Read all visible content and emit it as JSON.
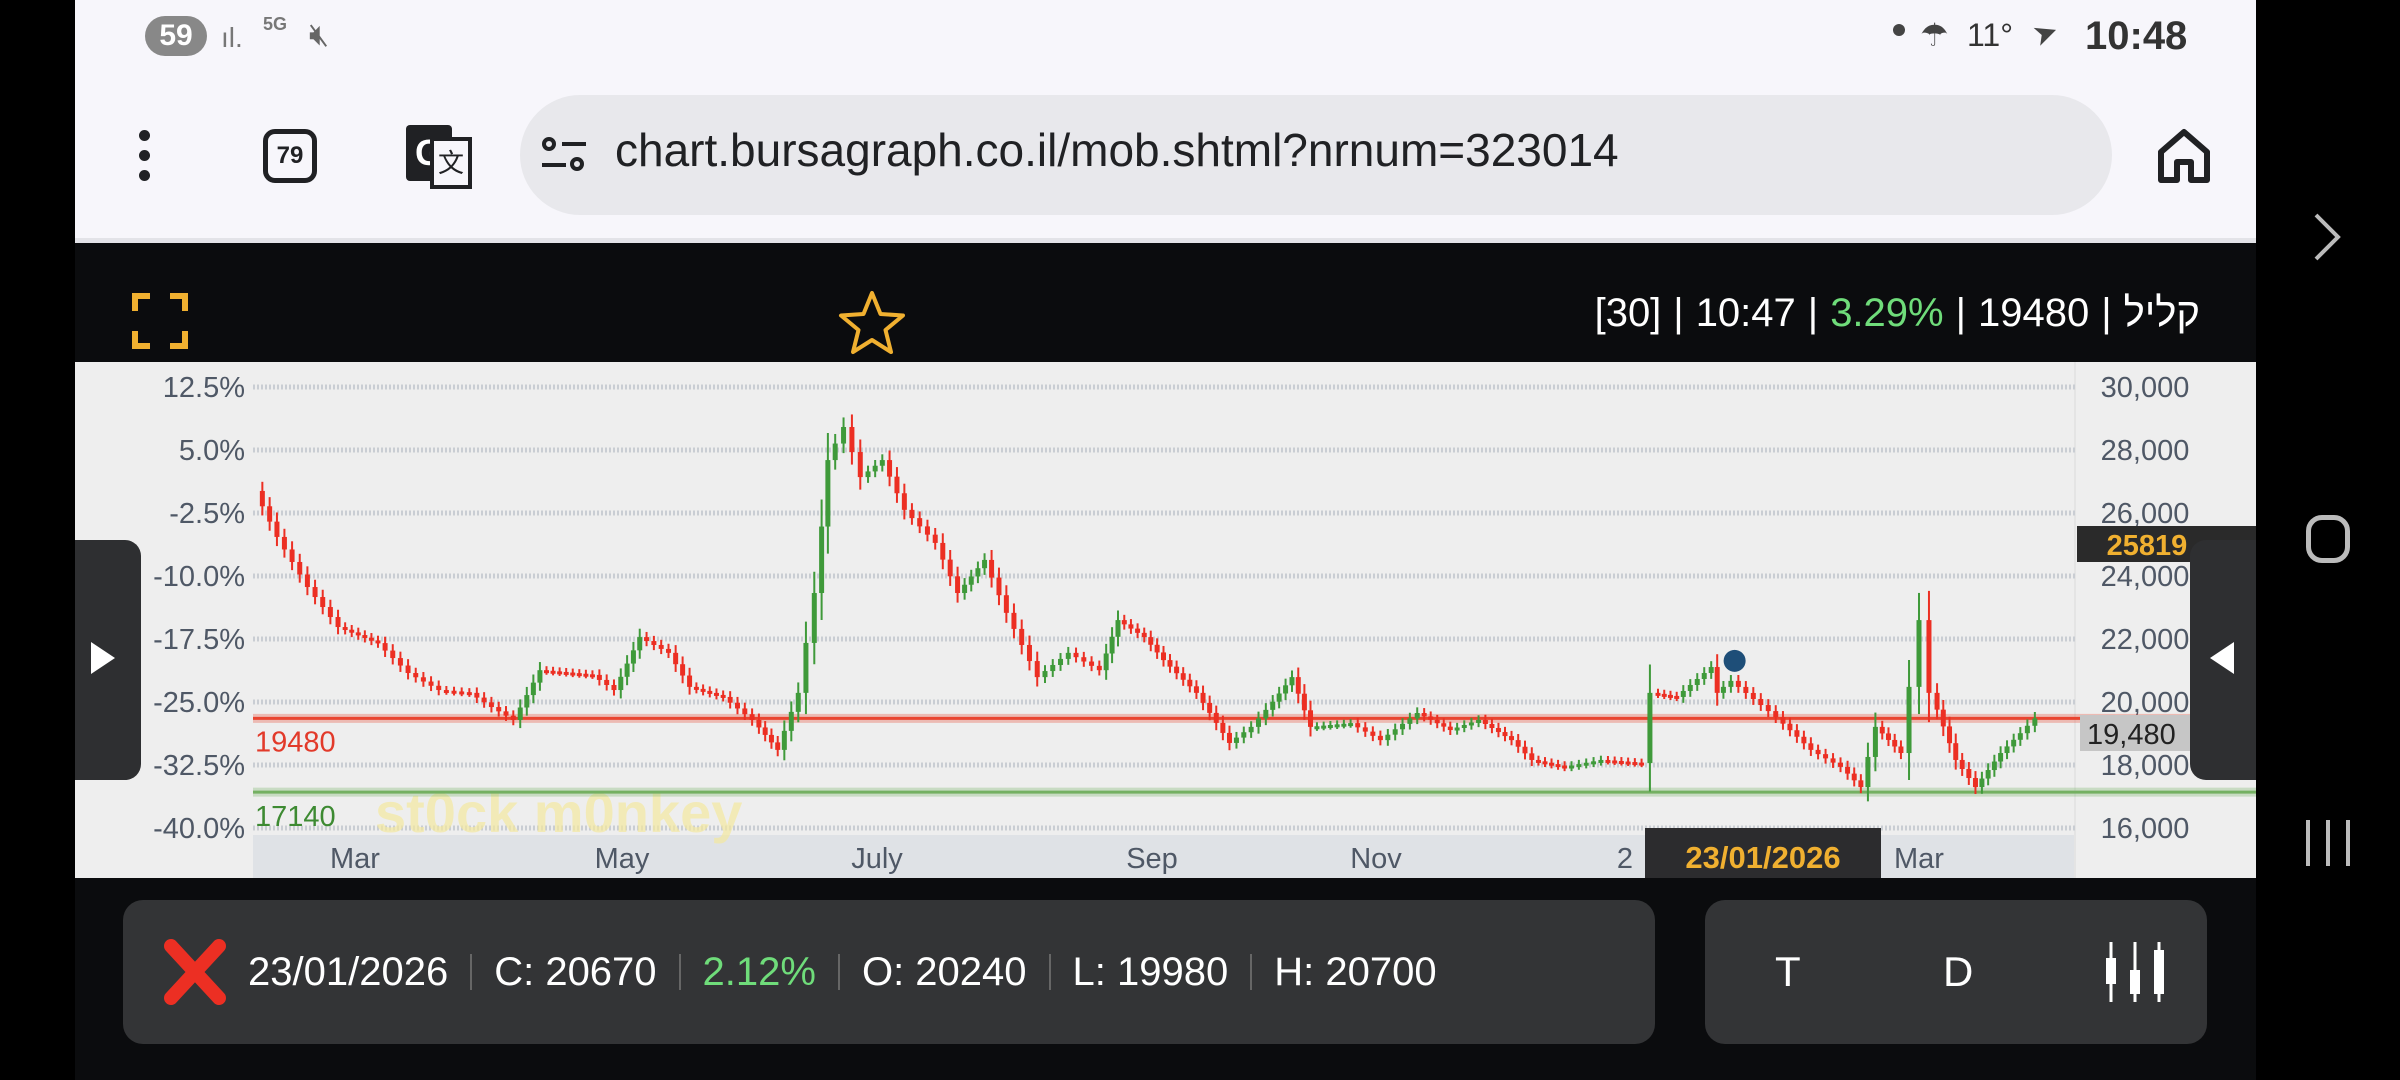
{
  "status_bar": {
    "notification_count": "59",
    "network": "5G",
    "temperature": "11°",
    "time": "10:48"
  },
  "browser": {
    "tab_count": "79",
    "url": "chart.bursagraph.co.il/mob.shtml?nrnum=323014"
  },
  "header": {
    "period": "[30]",
    "time": "10:47",
    "change": "3.29%",
    "price": "19480",
    "name": "קליל",
    "separator": "|"
  },
  "colors": {
    "up": "#3f9a3a",
    "down": "#ec2f23",
    "accent": "#f0b030",
    "positive_text": "#6fdc7a",
    "level_red": "#e9442f",
    "level_green": "#74b062"
  },
  "chart_data": {
    "type": "candlestick",
    "left_ticks": [
      "12.5%",
      "5.0%",
      "-2.5%",
      "-10.0%",
      "-17.5%",
      "-25.0%",
      "-32.5%",
      "-40.0%"
    ],
    "right_ticks": [
      30000,
      28000,
      26000,
      24000,
      22000,
      20000,
      18000,
      16000
    ],
    "right_tick_labels": [
      "30,000",
      "28,000",
      "26,000",
      "24,000",
      "22,000",
      "20,000",
      "18,000",
      "16,000"
    ],
    "ylim": [
      16000,
      30000
    ],
    "x_ticks": [
      {
        "label": "Mar",
        "date": "2025-03-01"
      },
      {
        "label": "May",
        "date": "2025-05-01"
      },
      {
        "label": "July",
        "date": "2025-07-01"
      },
      {
        "label": "Sep",
        "date": "2025-09-01"
      },
      {
        "label": "Nov",
        "date": "2025-11-01"
      },
      {
        "label": "2",
        "date": "2026-01-01"
      },
      {
        "label": "Mar",
        "date": "2026-03-01"
      }
    ],
    "grid": true,
    "levels": [
      {
        "value": 19480,
        "label": "19480",
        "color": "red"
      },
      {
        "value": 17140,
        "label": "17140",
        "color": "green"
      }
    ],
    "highlight_label": "25819",
    "last_price_label": "19,480",
    "cursor_date": "23/01/2026",
    "watermark": "st0ck m0nkey",
    "closes": [
      [
        "2025-02-07",
        26700
      ],
      [
        "2025-02-12",
        25240
      ],
      [
        "2025-02-19",
        23650
      ],
      [
        "2025-02-26",
        22380
      ],
      [
        "2025-03-07",
        21870
      ],
      [
        "2025-03-14",
        20920
      ],
      [
        "2025-03-21",
        20380
      ],
      [
        "2025-03-28",
        20290
      ],
      [
        "2025-04-02",
        19840
      ],
      [
        "2025-04-07",
        19430
      ],
      [
        "2025-04-13",
        21010
      ],
      [
        "2025-04-25",
        20860
      ],
      [
        "2025-04-30",
        20380
      ],
      [
        "2025-05-06",
        22060
      ],
      [
        "2025-05-13",
        21560
      ],
      [
        "2025-05-18",
        20480
      ],
      [
        "2025-05-26",
        20160
      ],
      [
        "2025-06-02",
        19430
      ],
      [
        "2025-06-08",
        18480
      ],
      [
        "2025-06-13",
        20290
      ],
      [
        "2025-06-17",
        23460
      ],
      [
        "2025-06-20",
        27680
      ],
      [
        "2025-06-24",
        28730
      ],
      [
        "2025-06-28",
        27140
      ],
      [
        "2025-07-03",
        27680
      ],
      [
        "2025-07-08",
        26100
      ],
      [
        "2025-07-15",
        25050
      ],
      [
        "2025-07-20",
        23460
      ],
      [
        "2025-07-26",
        24510
      ],
      [
        "2025-07-31",
        22830
      ],
      [
        "2025-08-07",
        20790
      ],
      [
        "2025-08-14",
        21560
      ],
      [
        "2025-08-21",
        21010
      ],
      [
        "2025-08-25",
        22600
      ],
      [
        "2025-08-31",
        22060
      ],
      [
        "2025-09-05",
        21330
      ],
      [
        "2025-09-14",
        20290
      ],
      [
        "2025-09-23",
        18700
      ],
      [
        "2025-09-29",
        19210
      ],
      [
        "2025-10-03",
        19750
      ],
      [
        "2025-10-10",
        20790
      ],
      [
        "2025-10-15",
        19210
      ],
      [
        "2025-10-26",
        19330
      ],
      [
        "2025-11-03",
        18790
      ],
      [
        "2025-11-12",
        19650
      ],
      [
        "2025-11-20",
        19110
      ],
      [
        "2025-11-27",
        19430
      ],
      [
        "2025-12-05",
        18790
      ],
      [
        "2025-12-10",
        18160
      ],
      [
        "2025-12-18",
        17940
      ],
      [
        "2025-12-27",
        18160
      ],
      [
        "2026-01-05",
        18060
      ],
      [
        "2026-01-07",
        20290
      ],
      [
        "2026-01-12",
        20160
      ],
      [
        "2026-01-19",
        21110
      ],
      [
        "2026-01-20",
        20290
      ],
      [
        "2026-01-23",
        20670
      ],
      [
        "2026-02-01",
        19520
      ],
      [
        "2026-02-08",
        18480
      ],
      [
        "2026-02-14",
        17940
      ],
      [
        "2026-02-18",
        17300
      ],
      [
        "2026-02-21",
        19210
      ],
      [
        "2026-02-26",
        18380
      ],
      [
        "2026-02-28",
        20480
      ],
      [
        "2026-03-02",
        22600
      ],
      [
        "2026-03-04",
        20290
      ],
      [
        "2026-03-09",
        18160
      ],
      [
        "2026-03-13",
        17300
      ],
      [
        "2026-03-18",
        18380
      ],
      [
        "2026-03-22",
        19010
      ],
      [
        "2026-03-25",
        19480
      ]
    ]
  },
  "info": {
    "date": "23/01/2026",
    "close": "C: 20670",
    "change": "2.12%",
    "open": "O: 20240",
    "low": "L: 19980",
    "high": "H: 20700"
  },
  "controls": {
    "type_label": "T",
    "period_label": "D"
  }
}
